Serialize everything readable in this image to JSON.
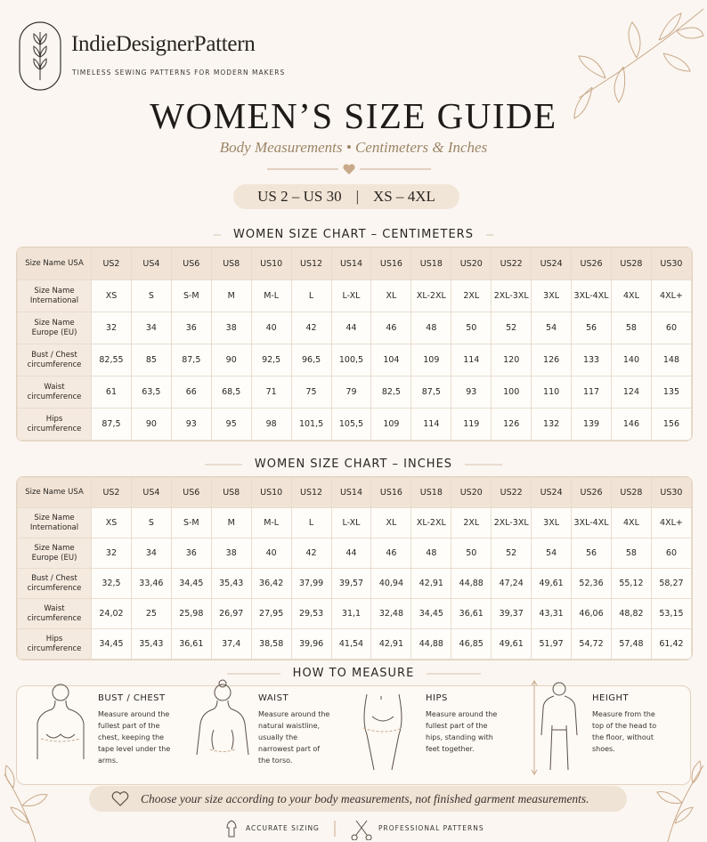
{
  "brand": {
    "name": "IndieDesignerPattern",
    "tagline": "TIMELESS SEWING PATTERNS FOR MODERN MAKERS"
  },
  "header": {
    "title": "WOMEN’S SIZE GUIDE",
    "subtitle": "Body Measurements • Centimeters & Inches",
    "range_us": "US 2 – US 30",
    "range_sep": "|",
    "range_alpha": "XS – 4XL"
  },
  "tables": [
    {
      "title": "WOMEN SIZE CHART – CENTIMETERS",
      "rows": [
        [
          "Size Name USA",
          "US2",
          "US4",
          "US6",
          "US8",
          "US10",
          "US12",
          "US14",
          "US16",
          "US18",
          "US20",
          "US22",
          "US24",
          "US26",
          "US28",
          "US30"
        ],
        [
          "Size Name International",
          "XS",
          "S",
          "S-M",
          "M",
          "M-L",
          "L",
          "L-XL",
          "XL",
          "XL-2XL",
          "2XL",
          "2XL-3XL",
          "3XL",
          "3XL-4XL",
          "4XL",
          "4XL+"
        ],
        [
          "Size Name Europe (EU)",
          "32",
          "34",
          "36",
          "38",
          "40",
          "42",
          "44",
          "46",
          "48",
          "50",
          "52",
          "54",
          "56",
          "58",
          "60"
        ],
        [
          "Bust / Chest circumference",
          "82,55",
          "85",
          "87,5",
          "90",
          "92,5",
          "96,5",
          "100,5",
          "104",
          "109",
          "114",
          "120",
          "126",
          "133",
          "140",
          "148"
        ],
        [
          "Waist circumference",
          "61",
          "63,5",
          "66",
          "68,5",
          "71",
          "75",
          "79",
          "82,5",
          "87,5",
          "93",
          "100",
          "110",
          "117",
          "124",
          "135"
        ],
        [
          "Hips circumference",
          "87,5",
          "90",
          "93",
          "95",
          "98",
          "101,5",
          "105,5",
          "109",
          "114",
          "119",
          "126",
          "132",
          "139",
          "146",
          "156"
        ]
      ]
    },
    {
      "title": "WOMEN SIZE CHART – INCHES",
      "rows": [
        [
          "Size Name USA",
          "US2",
          "US4",
          "US6",
          "US8",
          "US10",
          "US12",
          "US14",
          "US16",
          "US18",
          "US20",
          "US22",
          "US24",
          "US26",
          "US28",
          "US30"
        ],
        [
          "Size Name International",
          "XS",
          "S",
          "S-M",
          "M",
          "M-L",
          "L",
          "L-XL",
          "XL",
          "XL-2XL",
          "2XL",
          "2XL-3XL",
          "3XL",
          "3XL-4XL",
          "4XL",
          "4XL+"
        ],
        [
          "Size Name Europe (EU)",
          "32",
          "34",
          "36",
          "38",
          "40",
          "42",
          "44",
          "46",
          "48",
          "50",
          "52",
          "54",
          "56",
          "58",
          "60"
        ],
        [
          "Bust / Chest circumference",
          "32,5",
          "33,46",
          "34,45",
          "35,43",
          "36,42",
          "37,99",
          "39,57",
          "40,94",
          "42,91",
          "44,88",
          "47,24",
          "49,61",
          "52,36",
          "55,12",
          "58,27"
        ],
        [
          "Waist circumference",
          "24,02",
          "25",
          "25,98",
          "26,97",
          "27,95",
          "29,53",
          "31,1",
          "32,48",
          "34,45",
          "36,61",
          "39,37",
          "43,31",
          "46,06",
          "48,82",
          "53,15"
        ],
        [
          "Hips circumference",
          "34,45",
          "35,43",
          "36,61",
          "37,4",
          "38,58",
          "39,96",
          "41,54",
          "42,91",
          "44,88",
          "46,85",
          "49,61",
          "51,97",
          "54,72",
          "57,48",
          "61,42"
        ]
      ]
    }
  ],
  "measure": {
    "title": "HOW TO MEASURE",
    "items": [
      {
        "name": "BUST / CHEST",
        "text": "Measure around the fullest part of the chest, keeping the tape level under the arms."
      },
      {
        "name": "WAIST",
        "text": "Measure around the natural waistline, usually the narrowest part of the torso."
      },
      {
        "name": "HIPS",
        "text": "Measure around the fullest part of the hips, standing with feet together."
      },
      {
        "name": "HEIGHT",
        "text": "Measure from the top of the head to the floor, without shoes."
      }
    ]
  },
  "note": "Choose your size according to your body measurements, not finished garment measurements.",
  "footer": [
    "ACCURATE SIZING",
    "PROFESSIONAL PATTERNS"
  ]
}
